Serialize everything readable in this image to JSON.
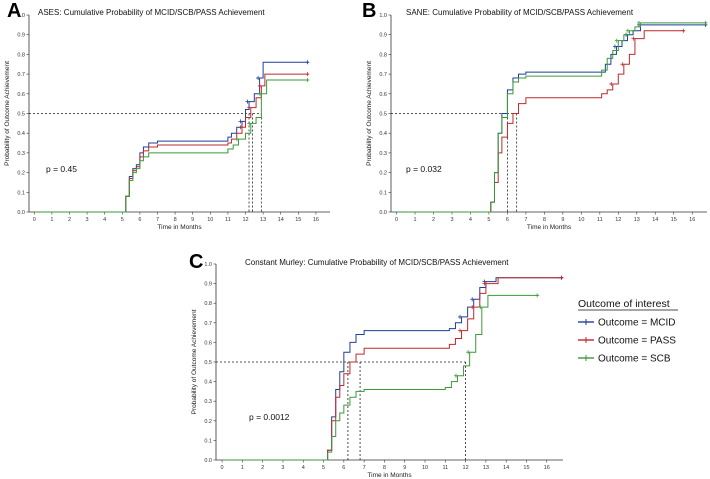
{
  "chart_data": [
    {
      "type": "line",
      "label": "A",
      "title": "ASES: Cumulative Probability of MCID/SCB/PASS Achievement",
      "xlabel": "Time in Months",
      "ylabel": "Probability of Outcome Achievement",
      "xlim": [
        -0.3,
        16.8
      ],
      "ylim": [
        0,
        1.0
      ],
      "xticks": [
        "0",
        "1",
        "2",
        "3",
        "4",
        "5",
        "6",
        "7",
        "8",
        "9",
        "10",
        "11",
        "12",
        "13",
        "14",
        "15",
        "16"
      ],
      "yticks": [
        "0.0",
        "0.1",
        "0.2",
        "0.3",
        "0.4",
        "0.5",
        "0.6",
        "0.7",
        "0.8",
        "0.9",
        "1.0"
      ],
      "p_value": "p = 0.45",
      "median_line": 0.5,
      "median_times": [
        12.2,
        12.4,
        12.9
      ],
      "series": [
        {
          "name": "MCID",
          "color": "#1f3f9a",
          "x": [
            0,
            5,
            5.2,
            5.4,
            5.6,
            5.8,
            6.0,
            6.2,
            6.5,
            7.0,
            8.5,
            11.0,
            11.2,
            11.5,
            11.8,
            12.0,
            12.2,
            12.5,
            12.8,
            13.0,
            15.6
          ],
          "y": [
            0,
            0,
            0.08,
            0.18,
            0.22,
            0.24,
            0.3,
            0.33,
            0.35,
            0.36,
            0.36,
            0.38,
            0.4,
            0.43,
            0.46,
            0.52,
            0.56,
            0.6,
            0.68,
            0.76,
            0.76
          ]
        },
        {
          "name": "PASS",
          "color": "#c0282d",
          "x": [
            0,
            5,
            5.2,
            5.4,
            5.6,
            5.8,
            6.0,
            6.2,
            6.5,
            7.0,
            8.5,
            11.0,
            11.2,
            11.5,
            11.8,
            12.0,
            12.3,
            12.6,
            12.9,
            13.1,
            15.6
          ],
          "y": [
            0,
            0,
            0.08,
            0.17,
            0.21,
            0.23,
            0.28,
            0.31,
            0.33,
            0.34,
            0.34,
            0.35,
            0.37,
            0.4,
            0.43,
            0.48,
            0.53,
            0.58,
            0.64,
            0.7,
            0.7
          ]
        },
        {
          "name": "SCB",
          "color": "#3a9a3a",
          "x": [
            0,
            5,
            5.2,
            5.4,
            5.6,
            5.8,
            6.0,
            6.2,
            6.5,
            7.0,
            8.5,
            11.0,
            11.3,
            11.6,
            12.0,
            12.3,
            12.6,
            12.9,
            13.2,
            15.6
          ],
          "y": [
            0,
            0,
            0.08,
            0.16,
            0.2,
            0.22,
            0.26,
            0.28,
            0.3,
            0.3,
            0.3,
            0.32,
            0.34,
            0.37,
            0.4,
            0.45,
            0.48,
            0.6,
            0.67,
            0.67
          ]
        }
      ]
    },
    {
      "type": "line",
      "label": "B",
      "title": "SANE: Cumulative Probability of MCID/SCB/PASS Achievement",
      "xlabel": "Time in Months",
      "ylabel": "Probability of Outcome Achievement",
      "xlim": [
        -0.3,
        16.8
      ],
      "ylim": [
        0,
        1.0
      ],
      "xticks": [
        "0",
        "1",
        "2",
        "3",
        "4",
        "5",
        "6",
        "7",
        "8",
        "9",
        "10",
        "11",
        "12",
        "13",
        "14",
        "15",
        "16"
      ],
      "yticks": [
        "0.0",
        "0.1",
        "0.2",
        "0.3",
        "0.4",
        "0.5",
        "0.6",
        "0.7",
        "0.8",
        "0.9",
        "1.0"
      ],
      "p_value": "p = 0.032",
      "median_line": 0.5,
      "median_times": [
        6.0,
        6.5
      ],
      "series": [
        {
          "name": "MCID",
          "color": "#1f3f9a",
          "x": [
            0,
            5,
            5.1,
            5.3,
            5.5,
            5.7,
            6.0,
            6.3,
            6.6,
            7.0,
            9.0,
            11.0,
            11.3,
            11.6,
            11.9,
            12.2,
            12.5,
            12.8,
            13.2,
            15.6,
            16.8
          ],
          "y": [
            0,
            0,
            0.05,
            0.2,
            0.4,
            0.5,
            0.62,
            0.68,
            0.7,
            0.71,
            0.71,
            0.71,
            0.75,
            0.8,
            0.84,
            0.87,
            0.9,
            0.92,
            0.95,
            0.95,
            0.95
          ]
        },
        {
          "name": "PASS",
          "color": "#c0282d",
          "x": [
            0,
            5,
            5.1,
            5.3,
            5.5,
            5.7,
            6.0,
            6.3,
            6.6,
            7.0,
            10.9,
            11.1,
            11.4,
            11.7,
            12.0,
            12.3,
            12.6,
            12.9,
            13.4,
            15.6
          ],
          "y": [
            0,
            0,
            0.05,
            0.15,
            0.3,
            0.38,
            0.45,
            0.5,
            0.55,
            0.58,
            0.58,
            0.6,
            0.62,
            0.65,
            0.7,
            0.75,
            0.8,
            0.88,
            0.92,
            0.92
          ]
        },
        {
          "name": "SCB",
          "color": "#3a9a3a",
          "x": [
            0,
            5,
            5.1,
            5.3,
            5.5,
            5.7,
            6.0,
            6.3,
            6.6,
            7.0,
            10.8,
            11.1,
            11.4,
            11.7,
            12.0,
            12.3,
            12.6,
            12.9,
            13.2,
            15.6,
            16.8
          ],
          "y": [
            0,
            0,
            0.05,
            0.2,
            0.4,
            0.48,
            0.6,
            0.66,
            0.68,
            0.69,
            0.69,
            0.72,
            0.78,
            0.82,
            0.87,
            0.9,
            0.92,
            0.94,
            0.96,
            0.96,
            0.96
          ]
        }
      ]
    },
    {
      "type": "line",
      "label": "C",
      "title": "Constant Murley: Cumulative Probability of MCID/SCB/PASS Achievement",
      "xlabel": "Time in Months",
      "ylabel": "Probability of Outcome Achievement",
      "xlim": [
        -0.3,
        16.8
      ],
      "ylim": [
        0,
        1.0
      ],
      "xticks": [
        "0",
        "1",
        "2",
        "3",
        "4",
        "5",
        "6",
        "7",
        "8",
        "9",
        "10",
        "11",
        "12",
        "13",
        "14",
        "15",
        "16"
      ],
      "yticks": [
        "0.0",
        "0.1",
        "0.2",
        "0.3",
        "0.4",
        "0.5",
        "0.6",
        "0.7",
        "0.8",
        "0.9",
        "1.0"
      ],
      "p_value": "p = 0.0012",
      "median_line": 0.5,
      "median_times": [
        6.2,
        6.8,
        12.0
      ],
      "series": [
        {
          "name": "MCID",
          "color": "#1f3f9a",
          "x": [
            0,
            5,
            5.2,
            5.4,
            5.6,
            5.8,
            6.0,
            6.3,
            6.6,
            7.0,
            9.5,
            11.2,
            11.5,
            11.8,
            12.1,
            12.4,
            12.7,
            13.0,
            13.5,
            16.8
          ],
          "y": [
            0,
            0,
            0.05,
            0.22,
            0.36,
            0.45,
            0.55,
            0.6,
            0.64,
            0.66,
            0.66,
            0.67,
            0.7,
            0.73,
            0.78,
            0.82,
            0.88,
            0.91,
            0.93,
            0.93
          ]
        },
        {
          "name": "PASS",
          "color": "#c0282d",
          "x": [
            0,
            5,
            5.2,
            5.4,
            5.6,
            5.8,
            6.0,
            6.3,
            6.6,
            7.0,
            9.5,
            11.2,
            11.5,
            11.8,
            12.1,
            12.4,
            12.7,
            13.0,
            13.6,
            16.8
          ],
          "y": [
            0,
            0,
            0.05,
            0.2,
            0.32,
            0.38,
            0.44,
            0.5,
            0.54,
            0.57,
            0.57,
            0.59,
            0.62,
            0.66,
            0.72,
            0.78,
            0.85,
            0.9,
            0.93,
            0.93
          ]
        },
        {
          "name": "SCB",
          "color": "#3a9a3a",
          "x": [
            0,
            5,
            5.2,
            5.4,
            5.6,
            5.8,
            6.0,
            6.3,
            6.6,
            7.0,
            9.5,
            11.0,
            11.3,
            11.6,
            11.9,
            12.2,
            12.5,
            12.8,
            13.1,
            15.6
          ],
          "y": [
            0,
            0,
            0.04,
            0.12,
            0.2,
            0.24,
            0.28,
            0.32,
            0.35,
            0.36,
            0.36,
            0.37,
            0.4,
            0.43,
            0.48,
            0.55,
            0.64,
            0.78,
            0.84,
            0.84
          ]
        }
      ]
    }
  ],
  "legend": {
    "title": "Outcome of interest",
    "items": [
      {
        "label": "Outcome = MCID",
        "color": "#1f3f9a"
      },
      {
        "label": "Outcome = PASS",
        "color": "#c0282d"
      },
      {
        "label": "Outcome = SCB",
        "color": "#3a9a3a"
      }
    ]
  }
}
